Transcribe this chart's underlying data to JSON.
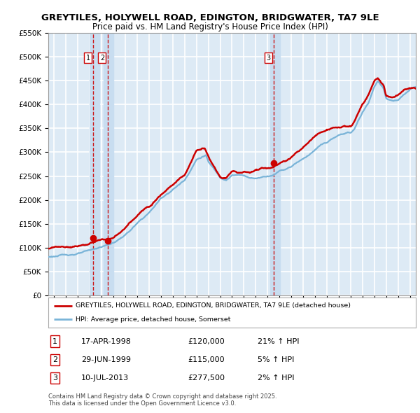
{
  "title1": "GREYTILES, HOLYWELL ROAD, EDINGTON, BRIDGWATER, TA7 9LE",
  "title2": "Price paid vs. HM Land Registry's House Price Index (HPI)",
  "legend_label1": "GREYTILES, HOLYWELL ROAD, EDINGTON, BRIDGWATER, TA7 9LE (detached house)",
  "legend_label2": "HPI: Average price, detached house, Somerset",
  "footer": "Contains HM Land Registry data © Crown copyright and database right 2025.\nThis data is licensed under the Open Government Licence v3.0.",
  "sale_points": [
    {
      "label": "1",
      "date_num": 1998.29,
      "price": 120000,
      "hpi_pct": "21% ↑ HPI",
      "date_str": "17-APR-1998"
    },
    {
      "label": "2",
      "date_num": 1999.49,
      "price": 115000,
      "hpi_pct": "5% ↑ HPI",
      "date_str": "29-JUN-1999"
    },
    {
      "label": "3",
      "date_num": 2013.52,
      "price": 277500,
      "hpi_pct": "2% ↑ HPI",
      "date_str": "10-JUL-2013"
    }
  ],
  "vline_color": "#cc0000",
  "vband_color": "#c8ddf0",
  "hpi_line_color": "#7ab4d8",
  "price_line_color": "#cc0000",
  "bg_color": "#ddeaf5",
  "grid_color": "#ffffff",
  "ylim": [
    0,
    550000
  ],
  "xlim_start": 1994.5,
  "xlim_end": 2025.5,
  "hpi_base_years": [
    1994.5,
    1995,
    1996,
    1997,
    1998,
    1999,
    2000,
    2001,
    2002,
    2003,
    2004,
    2005,
    2006,
    2007,
    2007.8,
    2008,
    2009,
    2009.5,
    2010,
    2010.5,
    2011,
    2011.5,
    2012,
    2012.5,
    2013,
    2013.5,
    2014,
    2014.5,
    2015,
    2015.5,
    2016,
    2016.5,
    2017,
    2017.5,
    2018,
    2018.5,
    2019,
    2019.5,
    2020,
    2020.3,
    2021,
    2021.5,
    2022,
    2022.3,
    2022.8,
    2023,
    2023.5,
    2024,
    2024.5,
    2025,
    2025.5
  ],
  "hpi_base_vals": [
    80000,
    82000,
    84000,
    88000,
    92000,
    100000,
    108000,
    125000,
    148000,
    170000,
    200000,
    220000,
    240000,
    285000,
    295000,
    280000,
    248000,
    245000,
    255000,
    255000,
    253000,
    250000,
    248000,
    252000,
    255000,
    258000,
    268000,
    272000,
    278000,
    288000,
    295000,
    305000,
    315000,
    325000,
    330000,
    338000,
    342000,
    348000,
    348000,
    355000,
    390000,
    410000,
    445000,
    455000,
    440000,
    420000,
    415000,
    415000,
    425000,
    435000,
    440000
  ],
  "price_base_years": [
    1994.5,
    1995,
    1996,
    1997,
    1998,
    1999,
    2000,
    2001,
    2002,
    2003,
    2004,
    2005,
    2006,
    2007,
    2007.7,
    2008.2,
    2009,
    2009.5,
    2010,
    2010.5,
    2011,
    2011.5,
    2012,
    2012.5,
    2013,
    2013.5,
    2014,
    2014.5,
    2015,
    2015.5,
    2016,
    2016.5,
    2017,
    2017.5,
    2018,
    2018.5,
    2019,
    2019.5,
    2020,
    2020.3,
    2021,
    2021.5,
    2022,
    2022.3,
    2022.8,
    2023,
    2023.5,
    2024,
    2024.5,
    2025,
    2025.5
  ],
  "price_base_vals": [
    98000,
    100000,
    100000,
    104000,
    110000,
    116000,
    118000,
    138000,
    162000,
    183000,
    213000,
    238000,
    258000,
    310000,
    315000,
    290000,
    255000,
    255000,
    268000,
    265000,
    268000,
    265000,
    272000,
    278000,
    278000,
    283000,
    290000,
    295000,
    305000,
    318000,
    328000,
    340000,
    350000,
    360000,
    365000,
    370000,
    368000,
    372000,
    370000,
    380000,
    415000,
    435000,
    465000,
    470000,
    455000,
    432000,
    428000,
    432000,
    445000,
    450000,
    448000
  ]
}
